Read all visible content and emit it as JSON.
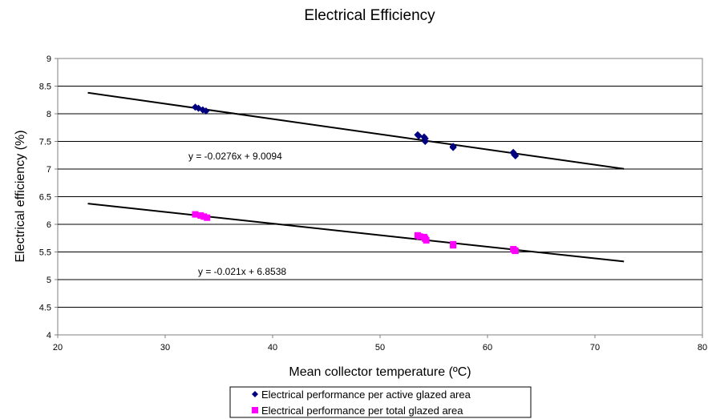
{
  "chart_data": {
    "type": "scatter",
    "title": "Electrical Efficiency",
    "xlabel": "Mean collector temperature (ºC)",
    "ylabel": "Electrical efficiency (%)",
    "xlim": [
      20,
      80
    ],
    "ylim": [
      4,
      9
    ],
    "xticks": [
      "20",
      "30",
      "40",
      "50",
      "60",
      "70",
      "80"
    ],
    "yticks": [
      "4",
      "4.5",
      "5",
      "5.5",
      "6",
      "6.5",
      "7",
      "7.5",
      "8",
      "8.5",
      "9"
    ],
    "grid": "horizontal",
    "legend_position": "bottom",
    "series": [
      {
        "name": "Electrical performance per active glazed area",
        "marker": "diamond",
        "color": "#000080",
        "points": [
          {
            "x": 32.8,
            "y": 8.12
          },
          {
            "x": 33.1,
            "y": 8.1
          },
          {
            "x": 33.5,
            "y": 8.07
          },
          {
            "x": 33.8,
            "y": 8.05
          },
          {
            "x": 53.5,
            "y": 7.62
          },
          {
            "x": 53.6,
            "y": 7.6
          },
          {
            "x": 54.1,
            "y": 7.58
          },
          {
            "x": 54.2,
            "y": 7.55
          },
          {
            "x": 54.2,
            "y": 7.5
          },
          {
            "x": 56.8,
            "y": 7.41
          },
          {
            "x": 56.8,
            "y": 7.39
          },
          {
            "x": 62.4,
            "y": 7.3
          },
          {
            "x": 62.5,
            "y": 7.26
          },
          {
            "x": 62.6,
            "y": 7.24
          }
        ],
        "trendline": {
          "slope": -0.0276,
          "intercept": 9.0094,
          "x_range": [
            22.8,
            72.7
          ],
          "equation": "y = -0.0276x + 9.0094"
        }
      },
      {
        "name": "Electrical performance per total glazed area",
        "marker": "square",
        "color": "#FF00FF",
        "points": [
          {
            "x": 32.8,
            "y": 6.18
          },
          {
            "x": 33.3,
            "y": 6.16
          },
          {
            "x": 33.6,
            "y": 6.14
          },
          {
            "x": 33.9,
            "y": 6.12
          },
          {
            "x": 53.5,
            "y": 5.8
          },
          {
            "x": 53.7,
            "y": 5.78
          },
          {
            "x": 54.1,
            "y": 5.77
          },
          {
            "x": 54.2,
            "y": 5.74
          },
          {
            "x": 54.3,
            "y": 5.71
          },
          {
            "x": 56.8,
            "y": 5.64
          },
          {
            "x": 56.8,
            "y": 5.62
          },
          {
            "x": 62.4,
            "y": 5.55
          },
          {
            "x": 62.5,
            "y": 5.53
          },
          {
            "x": 62.6,
            "y": 5.52
          }
        ],
        "trendline": {
          "slope": -0.021,
          "intercept": 6.8538,
          "x_range": [
            22.8,
            72.7
          ],
          "equation": "y = -0.021x + 6.8538"
        }
      }
    ]
  }
}
